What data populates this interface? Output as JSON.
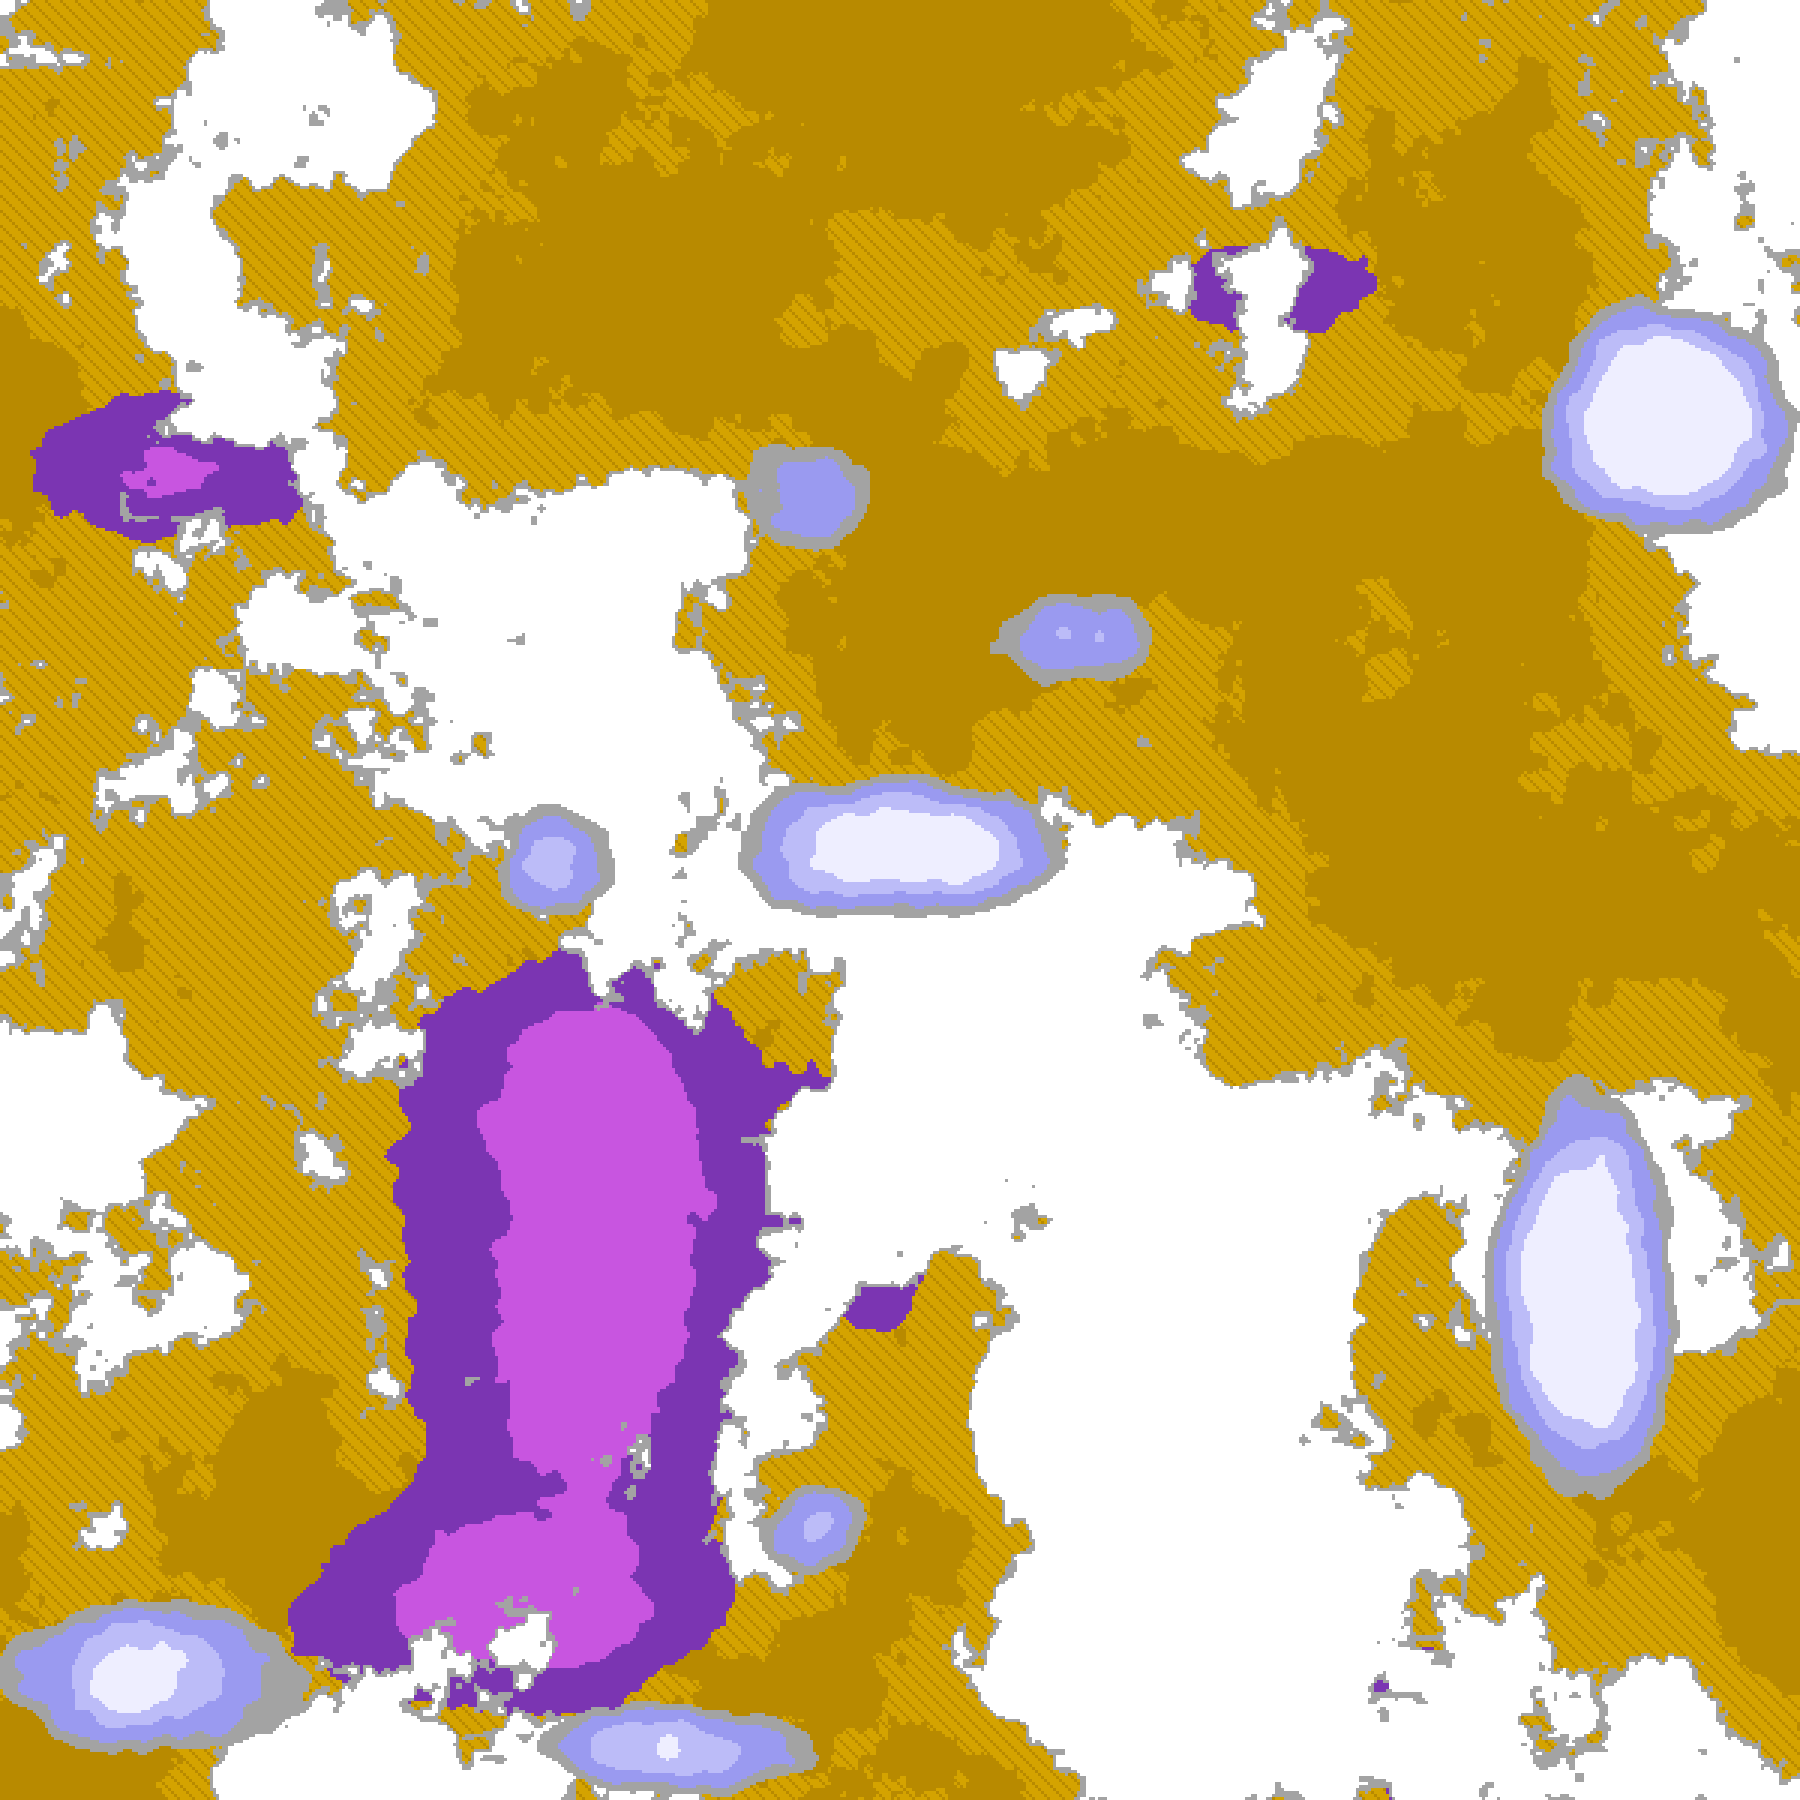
{
  "image": {
    "kind": "false-color satellite cloud classification",
    "palette": {
      "clear": "#ffffff",
      "low_cloud": "#d4a300",
      "low_cloud_dark": "#b88a00",
      "mid_cloud": "#7b35b2",
      "high_cloud": "#c855e0",
      "thick_cloud": "#eeeeff",
      "thin_cloud": "#bcbcf8",
      "cirrus": "#9a9af0",
      "edge": "#a3a3a3"
    }
  }
}
